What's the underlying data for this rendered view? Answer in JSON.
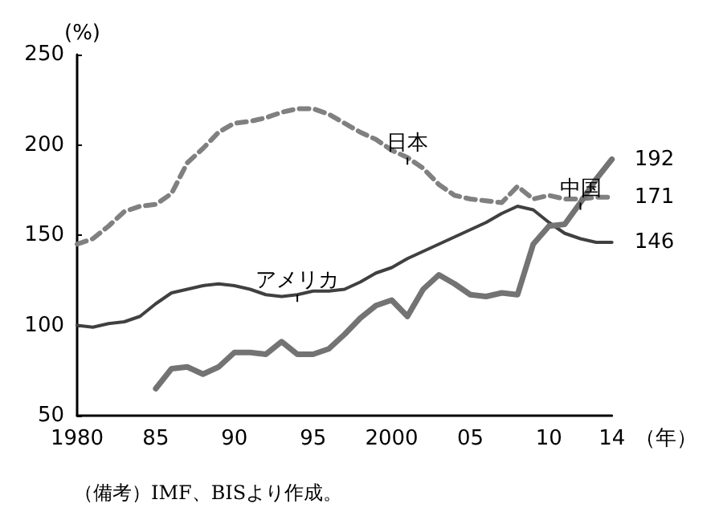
{
  "chart_data": {
    "type": "line",
    "ylabel": "(%)",
    "xlabel": "（年）",
    "x": [
      1980,
      1981,
      1982,
      1983,
      1984,
      1985,
      1986,
      1987,
      1988,
      1989,
      1990,
      1991,
      1992,
      1993,
      1994,
      1995,
      1996,
      1997,
      1998,
      1999,
      2000,
      2001,
      2002,
      2003,
      2004,
      2005,
      2006,
      2007,
      2008,
      2009,
      2010,
      2011,
      2012,
      2013,
      2014
    ],
    "series": [
      {
        "name": "日本",
        "color": "#808080",
        "line_style": "dashed",
        "values": [
          145,
          148,
          155,
          163,
          166,
          167,
          173,
          190,
          198,
          207,
          212,
          213,
          215,
          218,
          220,
          220,
          217,
          212,
          207,
          203,
          197,
          193,
          187,
          178,
          172,
          170,
          169,
          168,
          177,
          170,
          172,
          170,
          170,
          171,
          171
        ],
        "value_labels": [
          null,
          null,
          null,
          null,
          null,
          null,
          null,
          null,
          null,
          null,
          null,
          null,
          null,
          null,
          null,
          null,
          null,
          null,
          null,
          null,
          null,
          null,
          null,
          null,
          null,
          null,
          null,
          null,
          null,
          null,
          null,
          null,
          null,
          null,
          "171"
        ]
      },
      {
        "name": "アメリカ",
        "color": "#404040",
        "line_style": "solid",
        "values": [
          100,
          99,
          101,
          102,
          105,
          112,
          118,
          120,
          122,
          123,
          122,
          120,
          117,
          116,
          117,
          119,
          119,
          120,
          124,
          129,
          132,
          137,
          141,
          145,
          149,
          153,
          157,
          162,
          166,
          164,
          157,
          151,
          148,
          146,
          146
        ],
        "value_labels": [
          null,
          null,
          null,
          null,
          null,
          null,
          null,
          null,
          null,
          null,
          null,
          null,
          null,
          null,
          null,
          null,
          null,
          null,
          null,
          null,
          null,
          null,
          null,
          null,
          null,
          null,
          null,
          null,
          null,
          null,
          null,
          null,
          null,
          null,
          "146"
        ]
      },
      {
        "name": "中国",
        "color": "#737373",
        "line_style": "solid",
        "values": [
          null,
          null,
          null,
          null,
          null,
          65,
          76,
          77,
          73,
          77,
          85,
          85,
          84,
          91,
          84,
          84,
          87,
          95,
          104,
          111,
          114,
          105,
          120,
          128,
          123,
          117,
          116,
          118,
          117,
          145,
          155,
          156,
          168,
          181,
          192
        ],
        "value_labels": [
          null,
          null,
          null,
          null,
          null,
          null,
          null,
          null,
          null,
          null,
          null,
          null,
          null,
          null,
          null,
          null,
          null,
          null,
          null,
          null,
          null,
          null,
          null,
          null,
          null,
          null,
          null,
          null,
          null,
          null,
          null,
          null,
          null,
          null,
          "192"
        ]
      }
    ],
    "xlim": [
      1980,
      2014
    ],
    "xticks": [
      1980,
      {
        "value": 1985,
        "label": "85"
      },
      {
        "value": 1990,
        "label": "90"
      },
      {
        "value": 1995,
        "label": "95"
      },
      2000,
      {
        "value": 2005,
        "label": "05"
      },
      {
        "value": 2010,
        "label": "10"
      },
      {
        "value": 2014,
        "label": "14"
      }
    ],
    "ylim": [
      50,
      250
    ],
    "yticks": [
      50,
      100,
      150,
      200,
      250
    ],
    "grid": false,
    "legend": false,
    "marker": "none",
    "annotations": [
      "（備考）IMF、BISより作成。"
    ]
  }
}
